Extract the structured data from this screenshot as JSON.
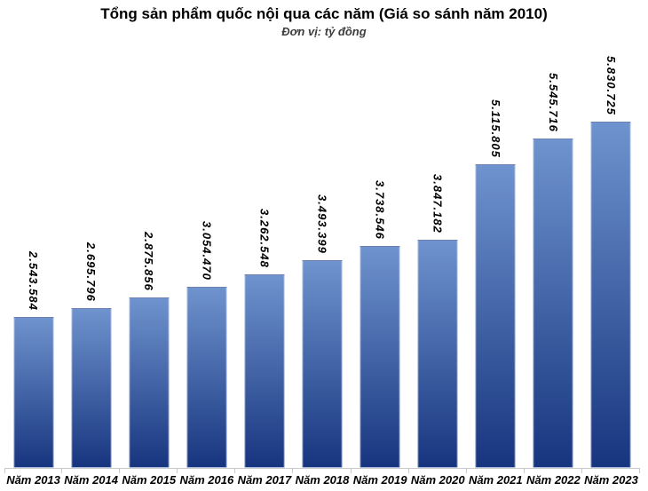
{
  "chart_data": {
    "type": "bar",
    "title": "Tổng sản phẩm quốc nội qua các năm (Giá so sánh năm 2010)",
    "subtitle": "Đơn vị: tỷ đồng",
    "categories": [
      "Năm 2013",
      "Năm 2014",
      "Năm 2015",
      "Năm 2016",
      "Năm 2017",
      "Năm 2018",
      "Năm 2019",
      "Năm 2020",
      "Năm 2021",
      "Năm 2022",
      "Năm 2023"
    ],
    "values": [
      2543584,
      2695796,
      2875856,
      3054470,
      3262548,
      3493399,
      3738546,
      3847182,
      5115805,
      5545716,
      5830725
    ],
    "value_labels": [
      "2.543.584",
      "2.695.796",
      "2.875.856",
      "3.054.470",
      "3.262.548",
      "3.493.399",
      "3.738.546",
      "3.847.182",
      "5.115.805",
      "5.545.716",
      "5.830.725"
    ],
    "xlabel": "",
    "ylabel": "",
    "ylim": [
      0,
      5830725
    ],
    "grid": false,
    "legend": false,
    "value_label_rotation": "vertical-top-to-bottom",
    "bar_color_top": "#6F93CE",
    "bar_color_bottom": "#17357F",
    "axis_color": "#C9C9C9",
    "title_color": "#000000",
    "subtitle_color": "#3D3D3D"
  }
}
